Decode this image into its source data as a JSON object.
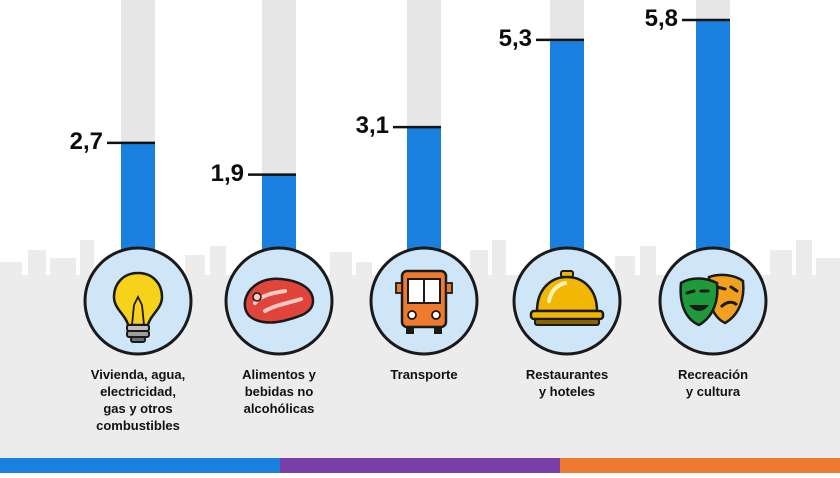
{
  "chart_data": {
    "type": "bar",
    "title": "",
    "xlabel": "",
    "ylabel": "",
    "ylim": [
      0,
      6.6
    ],
    "categories": [
      "Vivienda, agua,\nelectricidad,\ngas y otros\ncombustibles",
      "Alimentos y\nbebidas no\nalcohólicas",
      "Transporte",
      "Restaurantes\ny hoteles",
      "Recreación\ny cultura"
    ],
    "values": [
      2.7,
      1.9,
      3.1,
      5.3,
      5.8
    ],
    "value_labels": [
      "2,7",
      "1,9",
      "3,1",
      "5,3",
      "5,8"
    ],
    "icons": [
      "light-bulb-icon",
      "steak-icon",
      "bus-icon",
      "service-bell-icon",
      "theater-masks-icon"
    ],
    "colors": {
      "bar": "#1a80e0",
      "track": "#e6e6e6",
      "circle_fill": "#cfe6f9",
      "circle_stroke": "#1a1a1a",
      "skyline": "#ececec",
      "stripe_blue": "#1a80e0",
      "stripe_purple": "#7a3fa8",
      "stripe_orange": "#ee7a2f"
    }
  }
}
